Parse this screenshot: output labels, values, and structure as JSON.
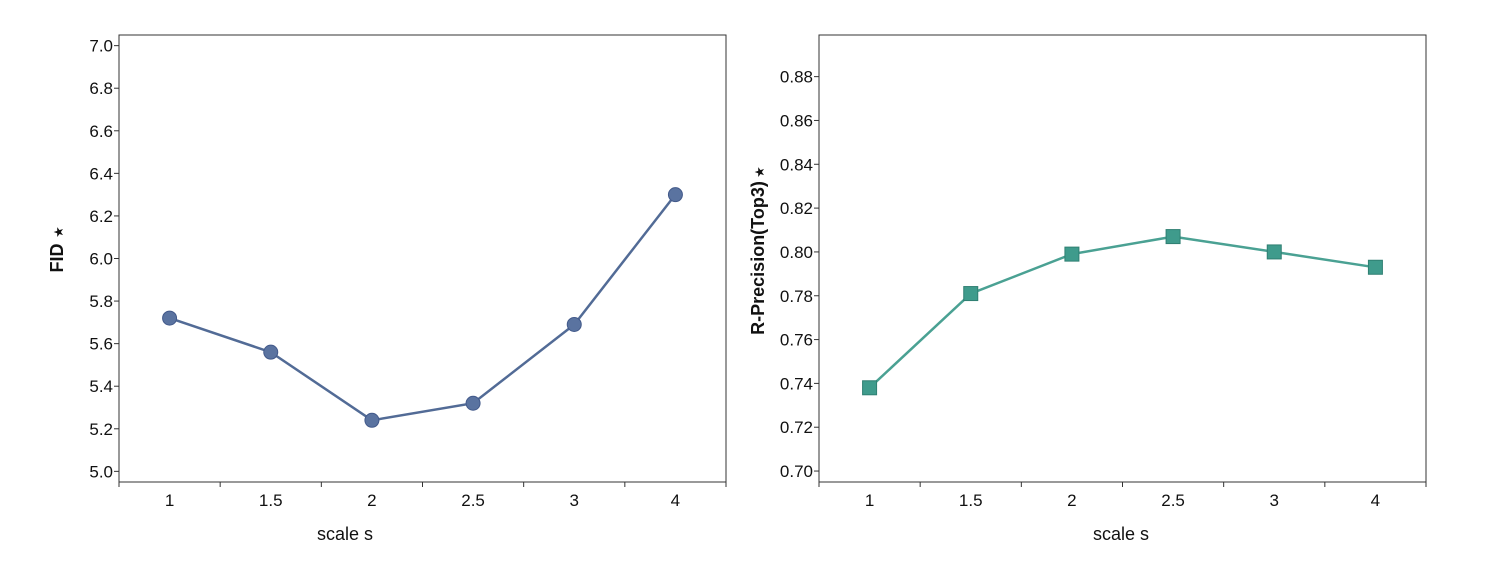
{
  "colors": {
    "left_series": "#5a73a0",
    "left_line": "#526b96",
    "right_series": "#3f9b8c",
    "right_line": "#4aa193",
    "axis": "#333333",
    "star_icon": "#888888"
  },
  "chart_data": [
    {
      "type": "line",
      "marker": "circle",
      "categories": [
        "1",
        "1.5",
        "2",
        "2.5",
        "3",
        "4"
      ],
      "values": [
        5.72,
        5.56,
        5.24,
        5.32,
        5.69,
        6.3
      ],
      "xlabel": "scale s",
      "ylabel": "FID",
      "ylabel_icon": "star-icon",
      "ylim": [
        4.95,
        7.05
      ],
      "yticks": [
        "5.0",
        "5.2",
        "5.4",
        "5.6",
        "5.8",
        "6.0",
        "6.2",
        "6.4",
        "6.6",
        "6.8",
        "7.0"
      ],
      "grid": false,
      "color": "#5a73a0"
    },
    {
      "type": "line",
      "marker": "square",
      "categories": [
        "1",
        "1.5",
        "2",
        "2.5",
        "3",
        "4"
      ],
      "values": [
        0.738,
        0.781,
        0.799,
        0.807,
        0.8,
        0.793
      ],
      "xlabel": "scale s",
      "ylabel": "R-Precision(Top3)",
      "ylabel_icon": "star-icon",
      "ylim": [
        0.695,
        0.899
      ],
      "yticks": [
        "0.70",
        "0.72",
        "0.74",
        "0.76",
        "0.78",
        "0.80",
        "0.82",
        "0.84",
        "0.86",
        "0.88"
      ],
      "grid": false,
      "color": "#3f9b8c"
    }
  ]
}
